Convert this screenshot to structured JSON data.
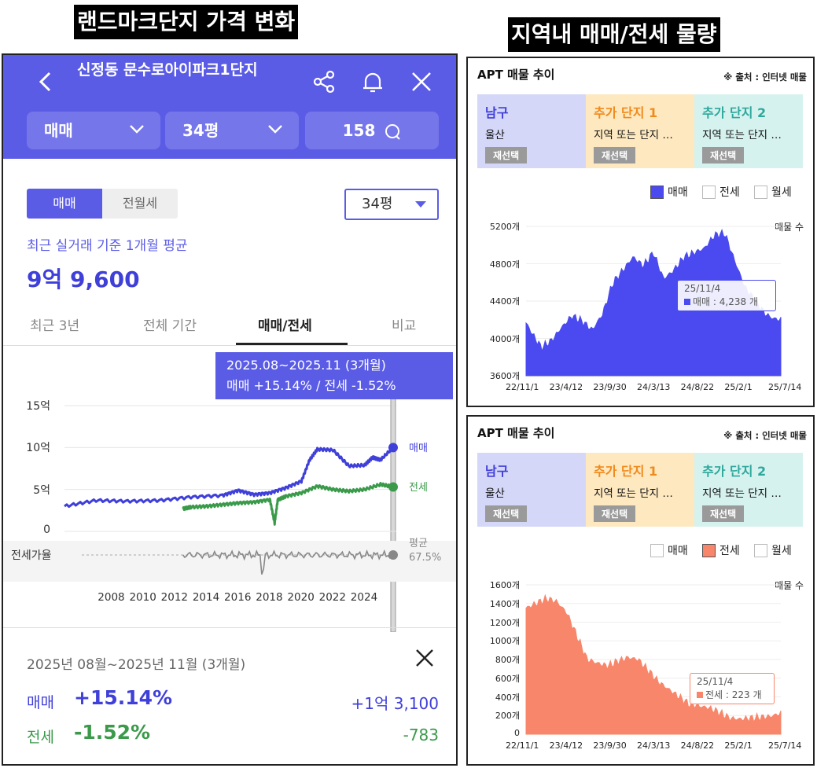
{
  "banners": {
    "left": "랜드마크단지 가격 변화",
    "right": "지역내 매매/전세 물량"
  },
  "left_app": {
    "header": {
      "title": "신정동 문수로아이파크1단지",
      "back_icon": "chevron-left-icon",
      "share_icon": "share-icon",
      "bell_icon": "bell-icon",
      "close_icon": "close-icon",
      "filter_trade": "매매",
      "filter_size": "34평",
      "comments": "158"
    },
    "segment": {
      "sale": "매매",
      "rent": "전월세",
      "size_select": "34평"
    },
    "avg_caption": "최근 실거래 기준 1개월 평균",
    "avg_price": "9억 9,600",
    "tabs": [
      "최근 3년",
      "전체 기간",
      "매매/전세",
      "비교"
    ],
    "tooltip": {
      "period": "2025.08~2025.11 (3개월)",
      "change": "매매 +15.14%  /  전세 -1.52%"
    },
    "summary": {
      "period": "2025년 08월~2025년 11월 (3개월)",
      "sale_label": "매매",
      "sale_pct": "+15.14%",
      "sale_amount": "+1억 3,100",
      "rent_label": "전세",
      "rent_pct": "-1.52%",
      "rent_amount": "-783"
    },
    "colors": {
      "header": "#5b5ce6",
      "sale": "#3f3fd9",
      "rent": "#3a9a4a",
      "ratio": "#888888"
    }
  },
  "chart_data": [
    {
      "type": "line",
      "title": "",
      "x_ticks": [
        "2008",
        "2010",
        "2012",
        "2014",
        "2016",
        "2018",
        "2020",
        "2022",
        "2024"
      ],
      "y_ticks": [
        "15억",
        "10억",
        "5억",
        "0"
      ],
      "ylim": [
        0,
        15
      ],
      "y_unit": "억",
      "ratio_axis_label": "전세가율",
      "ratio_avg_label": "평균",
      "ratio_avg_value": "67.5%",
      "series": [
        {
          "name": "매매",
          "x": [
            2005,
            2007,
            2009,
            2011,
            2013,
            2015,
            2016,
            2017,
            2018,
            2019,
            2020,
            2020.5,
            2021,
            2022,
            2023,
            2024,
            2024.5,
            2025,
            2025.8
          ],
          "values": [
            3.0,
            3.7,
            3.6,
            3.7,
            4.1,
            4.3,
            4.9,
            4.4,
            4.6,
            5.2,
            6.0,
            8.5,
            9.8,
            9.7,
            7.8,
            7.9,
            8.8,
            8.5,
            10.0
          ]
        },
        {
          "name": "전세",
          "x": [
            2012.5,
            2013,
            2014,
            2015,
            2016,
            2017,
            2018,
            2018.3,
            2018.5,
            2019,
            2020,
            2021,
            2022,
            2023,
            2024,
            2025,
            2025.8
          ],
          "values": [
            2.7,
            2.9,
            3.0,
            3.2,
            3.4,
            3.5,
            3.8,
            1.0,
            3.8,
            4.2,
            4.6,
            5.4,
            5.0,
            4.8,
            5.0,
            5.6,
            5.3
          ]
        }
      ]
    },
    {
      "type": "area",
      "title": "APT 매물 추이",
      "source": "※ 출처 : 인터넷 매물",
      "region": {
        "name": "남구",
        "sub": "울산",
        "button": "재선택"
      },
      "add1": {
        "name": "추가 단지 1",
        "sub": "지역 또는 단지 …",
        "button": "재선택"
      },
      "add2": {
        "name": "추가 단지 2",
        "sub": "지역 또는 단지 …",
        "button": "재선택"
      },
      "legend": [
        "매매",
        "전세",
        "월세"
      ],
      "active_series": "매매",
      "ylabel": "매물 수",
      "y_ticks": [
        "5200개",
        "4800개",
        "4400개",
        "4000개",
        "3600개"
      ],
      "ylim": [
        3600,
        5300
      ],
      "x_ticks": [
        "22/11/1",
        "23/4/12",
        "23/9/30",
        "24/3/13",
        "24/8/22",
        "25/2/1",
        "25/7/14"
      ],
      "x": [
        0,
        0.03,
        0.06,
        0.1,
        0.14,
        0.18,
        0.22,
        0.26,
        0.3,
        0.34,
        0.38,
        0.42,
        0.46,
        0.5,
        0.54,
        0.58,
        0.62,
        0.66,
        0.7,
        0.74,
        0.78,
        0.82,
        0.86,
        0.9,
        0.94,
        0.97,
        1.0
      ],
      "values": [
        4200,
        4050,
        3920,
        4000,
        4150,
        4280,
        4220,
        4120,
        4300,
        4650,
        4800,
        4950,
        4850,
        5000,
        4700,
        4800,
        4950,
        5000,
        5050,
        5200,
        5220,
        4900,
        4600,
        4450,
        4300,
        4250,
        4238
      ],
      "tooltip": {
        "date": "25/11/4",
        "text": "매매 : 4,238 개"
      },
      "color": "#4a4af0"
    },
    {
      "type": "area",
      "title": "APT 매물 추이",
      "source": "※ 출처 : 인터넷 매물",
      "region": {
        "name": "남구",
        "sub": "울산",
        "button": "재선택"
      },
      "add1": {
        "name": "추가 단지 1",
        "sub": "지역 또는 단지 …",
        "button": "재선택"
      },
      "add2": {
        "name": "추가 단지 2",
        "sub": "지역 또는 단지 …",
        "button": "재선택"
      },
      "legend": [
        "매매",
        "전세",
        "월세"
      ],
      "active_series": "전세",
      "ylabel": "매물 수",
      "y_ticks": [
        "1600개",
        "1400개",
        "1200개",
        "1000개",
        "800개",
        "600개",
        "400개",
        "200개",
        "0"
      ],
      "ylim": [
        0,
        1600
      ],
      "x_ticks": [
        "22/11/1",
        "23/4/12",
        "23/9/30",
        "24/3/13",
        "24/8/22",
        "25/2/1",
        "25/7/14"
      ],
      "x": [
        0,
        0.04,
        0.08,
        0.12,
        0.16,
        0.2,
        0.24,
        0.28,
        0.32,
        0.36,
        0.4,
        0.44,
        0.48,
        0.52,
        0.56,
        0.6,
        0.64,
        0.68,
        0.72,
        0.76,
        0.8,
        0.84,
        0.88,
        0.92,
        0.96,
        1.0
      ],
      "values": [
        1350,
        1400,
        1450,
        1420,
        1300,
        1050,
        800,
        760,
        730,
        780,
        820,
        800,
        680,
        560,
        480,
        400,
        320,
        300,
        280,
        230,
        170,
        160,
        170,
        180,
        190,
        223
      ],
      "tooltip": {
        "date": "25/11/4",
        "text": "전세 : 223 개"
      },
      "color": "#f7866a"
    }
  ]
}
